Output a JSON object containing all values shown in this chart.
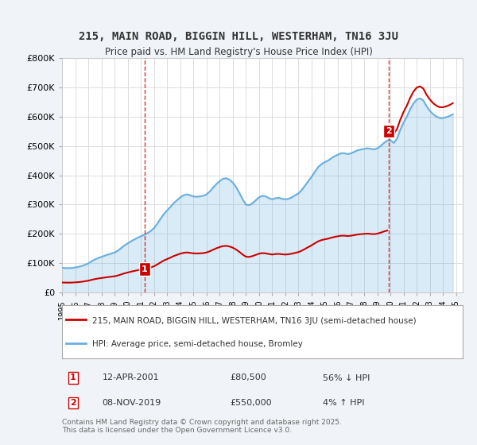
{
  "title": "215, MAIN ROAD, BIGGIN HILL, WESTERHAM, TN16 3JU",
  "subtitle": "Price paid vs. HM Land Registry's House Price Index (HPI)",
  "hpi_label": "HPI: Average price, semi-detached house, Bromley",
  "property_label": "215, MAIN ROAD, BIGGIN HILL, WESTERHAM, TN16 3JU (semi-detached house)",
  "hpi_color": "#6ab0e0",
  "property_color": "#cc0000",
  "annotation1_color": "#cc0000",
  "annotation2_color": "#cc0000",
  "background_color": "#f0f4f8",
  "plot_bg_color": "#ffffff",
  "ylim": [
    0,
    800000
  ],
  "yticks": [
    0,
    100000,
    200000,
    300000,
    400000,
    500000,
    600000,
    700000,
    800000
  ],
  "ytick_labels": [
    "£0",
    "£100K",
    "£200K",
    "£300K",
    "£400K",
    "£500K",
    "£600K",
    "£700K",
    "£800K"
  ],
  "sale1_date": 2001.28,
  "sale1_price": 80500,
  "sale1_label": "1",
  "sale2_date": 2019.86,
  "sale2_price": 550000,
  "sale2_label": "2",
  "footnote1": "1   12-APR-2001          £80,500          56% ↓ HPI",
  "footnote2": "2   08-NOV-2019          £550,000        4% ↑ HPI",
  "copyright": "Contains HM Land Registry data © Crown copyright and database right 2025.\nThis data is licensed under the Open Government Licence v3.0.",
  "hpi_data": {
    "dates": [
      1995.0,
      1995.25,
      1995.5,
      1995.75,
      1996.0,
      1996.25,
      1996.5,
      1996.75,
      1997.0,
      1997.25,
      1997.5,
      1997.75,
      1998.0,
      1998.25,
      1998.5,
      1998.75,
      1999.0,
      1999.25,
      1999.5,
      1999.75,
      2000.0,
      2000.25,
      2000.5,
      2000.75,
      2001.0,
      2001.25,
      2001.5,
      2001.75,
      2002.0,
      2002.25,
      2002.5,
      2002.75,
      2003.0,
      2003.25,
      2003.5,
      2003.75,
      2004.0,
      2004.25,
      2004.5,
      2004.75,
      2005.0,
      2005.25,
      2005.5,
      2005.75,
      2006.0,
      2006.25,
      2006.5,
      2006.75,
      2007.0,
      2007.25,
      2007.5,
      2007.75,
      2008.0,
      2008.25,
      2008.5,
      2008.75,
      2009.0,
      2009.25,
      2009.5,
      2009.75,
      2010.0,
      2010.25,
      2010.5,
      2010.75,
      2011.0,
      2011.25,
      2011.5,
      2011.75,
      2012.0,
      2012.25,
      2012.5,
      2012.75,
      2013.0,
      2013.25,
      2013.5,
      2013.75,
      2014.0,
      2014.25,
      2014.5,
      2014.75,
      2015.0,
      2015.25,
      2015.5,
      2015.75,
      2016.0,
      2016.25,
      2016.5,
      2016.75,
      2017.0,
      2017.25,
      2017.5,
      2017.75,
      2018.0,
      2018.25,
      2018.5,
      2018.75,
      2019.0,
      2019.25,
      2019.5,
      2019.75,
      2020.0,
      2020.25,
      2020.5,
      2020.75,
      2021.0,
      2021.25,
      2021.5,
      2021.75,
      2022.0,
      2022.25,
      2022.5,
      2022.75,
      2023.0,
      2023.25,
      2023.5,
      2023.75,
      2024.0,
      2024.25,
      2024.5,
      2024.75
    ],
    "values": [
      85000,
      84000,
      83500,
      84000,
      86000,
      88000,
      91000,
      95000,
      100000,
      107000,
      113000,
      118000,
      122000,
      126000,
      130000,
      133000,
      137000,
      143000,
      152000,
      161000,
      168000,
      175000,
      181000,
      187000,
      192000,
      197000,
      203000,
      210000,
      220000,
      235000,
      252000,
      268000,
      280000,
      292000,
      305000,
      315000,
      325000,
      332000,
      335000,
      332000,
      328000,
      327000,
      328000,
      330000,
      335000,
      345000,
      358000,
      370000,
      380000,
      388000,
      390000,
      385000,
      375000,
      360000,
      340000,
      318000,
      300000,
      298000,
      305000,
      315000,
      325000,
      330000,
      328000,
      322000,
      318000,
      322000,
      323000,
      320000,
      318000,
      320000,
      325000,
      332000,
      338000,
      350000,
      365000,
      380000,
      395000,
      412000,
      428000,
      438000,
      445000,
      450000,
      458000,
      465000,
      470000,
      475000,
      475000,
      472000,
      475000,
      480000,
      485000,
      488000,
      490000,
      492000,
      490000,
      488000,
      492000,
      500000,
      510000,
      518000,
      520000,
      510000,
      525000,
      555000,
      580000,
      600000,
      625000,
      645000,
      658000,
      662000,
      655000,
      635000,
      620000,
      608000,
      600000,
      595000,
      595000,
      598000,
      602000,
      608000
    ]
  }
}
